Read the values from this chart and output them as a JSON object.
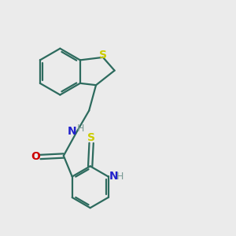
{
  "bg_color": "#ebebeb",
  "bond_color": "#2d6b5e",
  "S_color": "#cccc00",
  "N_color": "#2222cc",
  "O_color": "#cc0000",
  "H_color": "#7a9a95",
  "line_width": 1.6,
  "font_size": 10,
  "fig_size": [
    3.0,
    3.0
  ],
  "dpi": 100,
  "xlim": [
    0,
    10
  ],
  "ylim": [
    0,
    10
  ]
}
